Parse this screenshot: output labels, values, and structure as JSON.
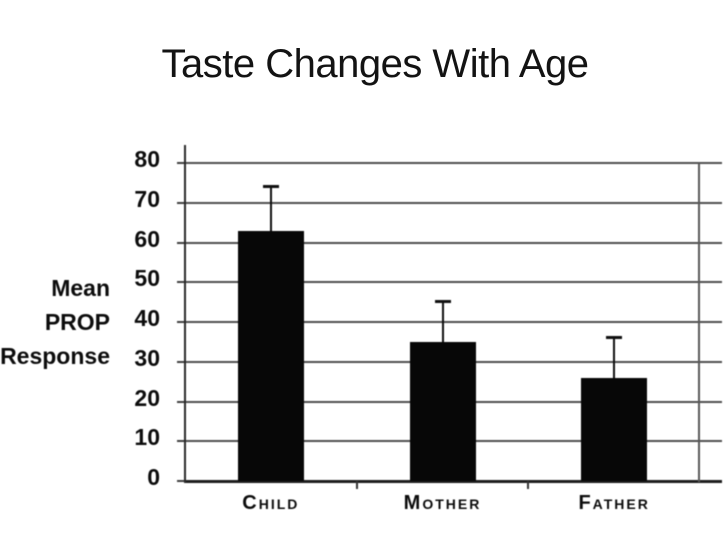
{
  "slide": {
    "title": "Taste Changes With Age",
    "background": "#ffffff"
  },
  "chart_data": {
    "type": "bar",
    "title": "Taste Changes With Age",
    "categories": [
      "Child",
      "Mother",
      "Father"
    ],
    "values": [
      63,
      35,
      26
    ],
    "errors_plus": [
      11,
      10,
      10
    ],
    "ylabel": "Mean PROP Response",
    "ylabel_lines": [
      "Mean",
      "PROP",
      "Response"
    ],
    "yticks": [
      0,
      10,
      20,
      30,
      40,
      50,
      60,
      70,
      80
    ],
    "ylim": [
      0,
      80
    ],
    "xlabel": "",
    "grid": "horizontal",
    "legend": "none",
    "bar_color": "#070707",
    "axis_color": "#2a2a2a",
    "gridline_color": "#4f4f4f",
    "error_bar_color": "#101010"
  }
}
